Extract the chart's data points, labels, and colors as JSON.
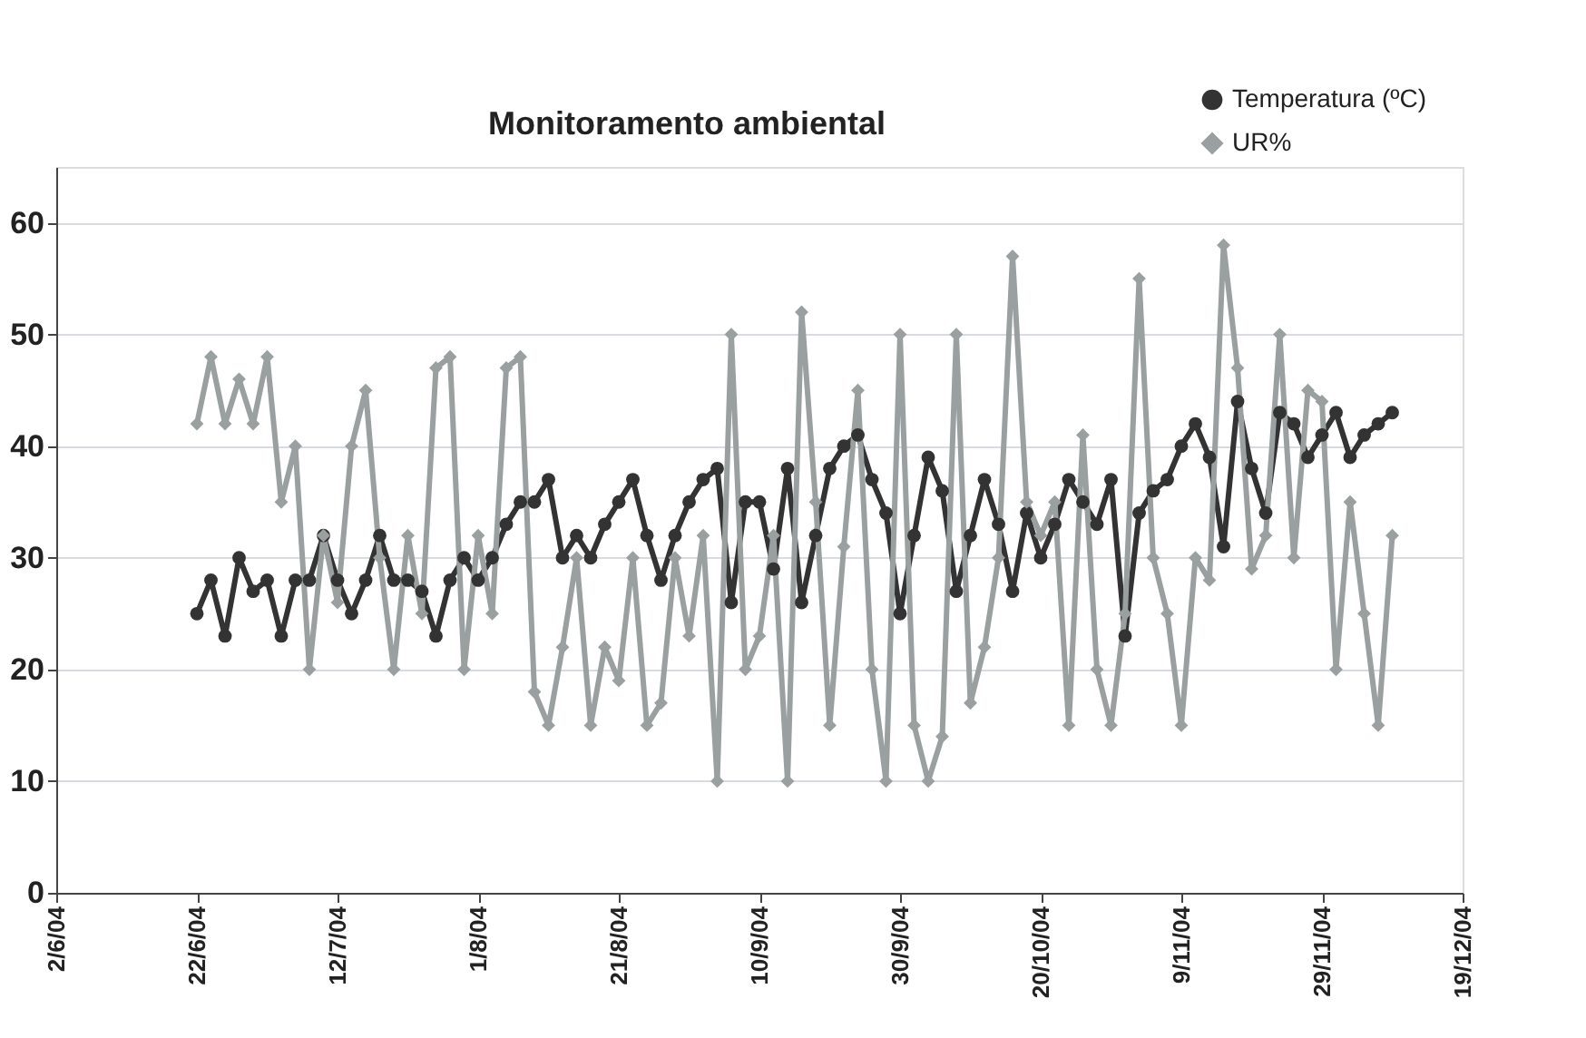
{
  "chart_data": {
    "type": "line",
    "title": "Monitoramento ambiental",
    "x": [
      "2004-06-22",
      "2004-06-24",
      "2004-06-26",
      "2004-06-28",
      "2004-06-30",
      "2004-07-02",
      "2004-07-04",
      "2004-07-06",
      "2004-07-08",
      "2004-07-10",
      "2004-07-12",
      "2004-07-14",
      "2004-07-16",
      "2004-07-18",
      "2004-07-20",
      "2004-07-22",
      "2004-07-24",
      "2004-07-26",
      "2004-07-28",
      "2004-07-30",
      "2004-08-01",
      "2004-08-03",
      "2004-08-05",
      "2004-08-07",
      "2004-08-09",
      "2004-08-11",
      "2004-08-13",
      "2004-08-15",
      "2004-08-17",
      "2004-08-19",
      "2004-08-21",
      "2004-08-23",
      "2004-08-25",
      "2004-08-27",
      "2004-08-29",
      "2004-08-31",
      "2004-09-02",
      "2004-09-04",
      "2004-09-06",
      "2004-09-08",
      "2004-09-10",
      "2004-09-12",
      "2004-09-14",
      "2004-09-16",
      "2004-09-18",
      "2004-09-20",
      "2004-09-22",
      "2004-09-24",
      "2004-09-26",
      "2004-09-28",
      "2004-09-30",
      "2004-10-02",
      "2004-10-04",
      "2004-10-06",
      "2004-10-08",
      "2004-10-10",
      "2004-10-12",
      "2004-10-14",
      "2004-10-16",
      "2004-10-18",
      "2004-10-20",
      "2004-10-22",
      "2004-10-24",
      "2004-10-26",
      "2004-10-28",
      "2004-10-30",
      "2004-11-01",
      "2004-11-03",
      "2004-11-05",
      "2004-11-07",
      "2004-11-09",
      "2004-11-11",
      "2004-11-13",
      "2004-11-15",
      "2004-11-17",
      "2004-11-19",
      "2004-11-21",
      "2004-11-23",
      "2004-11-25",
      "2004-11-27",
      "2004-11-29",
      "2004-12-01",
      "2004-12-03",
      "2004-12-05",
      "2004-12-07",
      "2004-12-09"
    ],
    "series": [
      {
        "name": "Temperatura (ºC)",
        "color": "#333333",
        "marker": "circle",
        "values": [
          25,
          28,
          23,
          30,
          27,
          28,
          23,
          28,
          28,
          32,
          28,
          25,
          28,
          32,
          28,
          28,
          27,
          23,
          28,
          30,
          28,
          30,
          33,
          35,
          35,
          37,
          30,
          32,
          30,
          33,
          35,
          37,
          32,
          28,
          32,
          35,
          37,
          38,
          26,
          35,
          35,
          29,
          38,
          26,
          32,
          38,
          40,
          41,
          37,
          34,
          25,
          32,
          39,
          36,
          27,
          32,
          37,
          33,
          27,
          34,
          30,
          33,
          37,
          35,
          33,
          37,
          23,
          34,
          36,
          37,
          40,
          42,
          39,
          31,
          44,
          38,
          34,
          43,
          42,
          39,
          41,
          43,
          39,
          41,
          42,
          43
        ]
      },
      {
        "name": "UR%",
        "color": "#9a9fa0",
        "marker": "diamond",
        "values": [
          42,
          48,
          42,
          46,
          42,
          48,
          35,
          40,
          20,
          32,
          26,
          40,
          45,
          30,
          20,
          32,
          25,
          47,
          48,
          20,
          32,
          25,
          47,
          48,
          18,
          15,
          22,
          30,
          15,
          22,
          19,
          30,
          15,
          17,
          30,
          23,
          32,
          10,
          50,
          20,
          23,
          32,
          10,
          52,
          35,
          15,
          31,
          45,
          20,
          10,
          50,
          15,
          10,
          14,
          50,
          17,
          22,
          30,
          57,
          35,
          32,
          35,
          15,
          41,
          20,
          15,
          25,
          55,
          30,
          25,
          15,
          30,
          28,
          58,
          47,
          29,
          32,
          50,
          30,
          45,
          44,
          20,
          35,
          25,
          15,
          32
        ]
      }
    ],
    "xlim": [
      "2004-06-02",
      "2004-12-19"
    ],
    "xticks": [
      {
        "value": "2004-06-02",
        "label": "2/6/04"
      },
      {
        "value": "2004-06-22",
        "label": "22/6/04"
      },
      {
        "value": "2004-07-12",
        "label": "12/7/04"
      },
      {
        "value": "2004-08-01",
        "label": "1/8/04"
      },
      {
        "value": "2004-08-21",
        "label": "21/8/04"
      },
      {
        "value": "2004-09-10",
        "label": "10/9/04"
      },
      {
        "value": "2004-09-30",
        "label": "30/9/04"
      },
      {
        "value": "2004-10-20",
        "label": "20/10/04"
      },
      {
        "value": "2004-11-09",
        "label": "9/11/04"
      },
      {
        "value": "2004-11-29",
        "label": "29/11/04"
      },
      {
        "value": "2004-12-19",
        "label": "19/12/04"
      }
    ],
    "ylim": [
      0,
      65
    ],
    "yticks": [
      0,
      10,
      20,
      30,
      40,
      50,
      60
    ],
    "grid": "y",
    "legend": "top right",
    "line_style": "solid"
  }
}
